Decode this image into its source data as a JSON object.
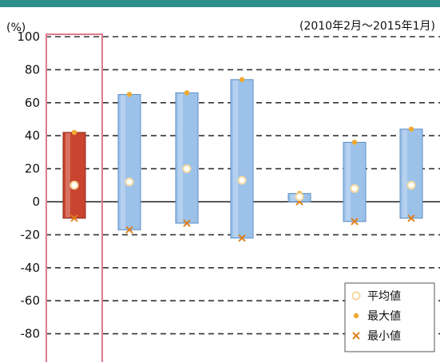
{
  "chart_data": {
    "type": "floating-bar",
    "unit_label": "(%)",
    "period_label": "(2010年2月～2015年1月)",
    "ylim": [
      -90,
      100
    ],
    "yticks": [
      100,
      80,
      60,
      40,
      20,
      0,
      -20,
      -40,
      -60,
      -80
    ],
    "grid": true,
    "legend_position": "bottom-right",
    "legend": [
      {
        "key": "avg",
        "label": "平均値"
      },
      {
        "key": "max",
        "label": "最大値"
      },
      {
        "key": "min",
        "label": "最小値"
      }
    ],
    "colors": {
      "highlight_bar": "#c9442e",
      "bar": "#9cc2ea",
      "highlight_border": "#e07a8a",
      "avg_marker": "#f5d9a0",
      "max_marker": "#f0a830",
      "min_marker": "#e0801a"
    },
    "bars": [
      {
        "max": 42,
        "min": -10,
        "avg": 10,
        "highlight": true
      },
      {
        "max": 65,
        "min": -17,
        "avg": 12
      },
      {
        "max": 66,
        "min": -13,
        "avg": 20
      },
      {
        "max": 74,
        "min": -22,
        "avg": 13
      },
      {
        "max": 5,
        "min": 0,
        "avg": 3
      },
      {
        "max": 36,
        "min": -12,
        "avg": 8
      },
      {
        "max": 44,
        "min": -10,
        "avg": 10
      }
    ]
  }
}
